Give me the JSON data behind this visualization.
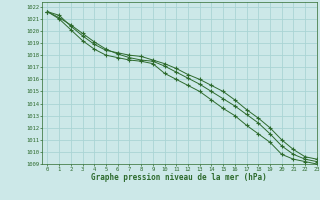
{
  "title": "Graphe pression niveau de la mer (hPa)",
  "background_color": "#cce8e8",
  "grid_color": "#aad4d4",
  "line_color": "#2d6a2d",
  "xlim": [
    -0.5,
    23
  ],
  "ylim": [
    1009,
    1022.4
  ],
  "xticks": [
    0,
    1,
    2,
    3,
    4,
    5,
    6,
    7,
    8,
    9,
    10,
    11,
    12,
    13,
    14,
    15,
    16,
    17,
    18,
    19,
    20,
    21,
    22,
    23
  ],
  "yticks": [
    1009,
    1010,
    1011,
    1012,
    1013,
    1014,
    1015,
    1016,
    1017,
    1018,
    1019,
    1020,
    1021,
    1022
  ],
  "series": [
    [
      1021.6,
      1021.1,
      1020.5,
      1019.8,
      1019.1,
      1018.5,
      1018.1,
      1017.8,
      1017.6,
      1017.5,
      1017.1,
      1016.6,
      1016.1,
      1015.6,
      1015.0,
      1014.4,
      1013.8,
      1013.1,
      1012.4,
      1011.5,
      1010.5,
      1009.8,
      1009.4,
      1009.2
    ],
    [
      1021.6,
      1021.0,
      1020.1,
      1019.2,
      1018.5,
      1018.0,
      1017.8,
      1017.6,
      1017.5,
      1017.3,
      1016.5,
      1016.0,
      1015.5,
      1015.0,
      1014.3,
      1013.6,
      1013.0,
      1012.2,
      1011.5,
      1010.8,
      1009.8,
      1009.4,
      1009.2,
      1009.0
    ],
    [
      1021.6,
      1021.3,
      1020.4,
      1019.6,
      1018.9,
      1018.4,
      1018.2,
      1018.0,
      1017.9,
      1017.6,
      1017.3,
      1016.9,
      1016.4,
      1016.0,
      1015.5,
      1015.0,
      1014.3,
      1013.5,
      1012.8,
      1012.0,
      1011.0,
      1010.2,
      1009.6,
      1009.4
    ]
  ]
}
